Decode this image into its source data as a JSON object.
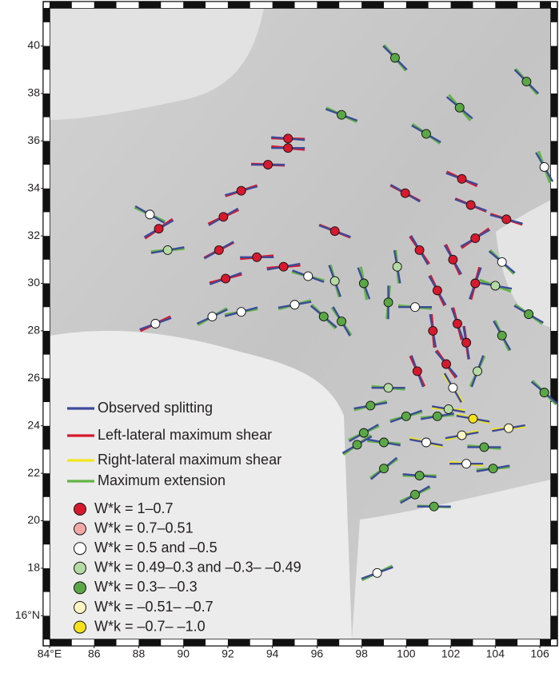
{
  "chart_data": {
    "type": "map",
    "xlim": [
      84,
      106.5
    ],
    "ylim": [
      15,
      41.6
    ],
    "xticks": [
      {
        "value": 84,
        "label": "84°E"
      },
      86,
      88,
      90,
      92,
      94,
      96,
      98,
      100,
      102,
      104,
      106
    ],
    "yticks": [
      {
        "value": 16,
        "label": "16°N"
      },
      18,
      20,
      22,
      24,
      26,
      28,
      30,
      32,
      34,
      36,
      38,
      40
    ],
    "legend": {
      "lines": [
        {
          "label": "Observed splitting",
          "color": "#3c4a9a"
        },
        {
          "label": "Left-lateral maximum shear",
          "color": "#d7192d"
        },
        {
          "label": "Right-lateral maximum shear",
          "color": "#f2e51c"
        },
        {
          "label": "Maximum extension",
          "color": "#62b446"
        }
      ],
      "classes": [
        {
          "label": "W*k = 1–0.7",
          "color": "#d7192d"
        },
        {
          "label": "W*k = 0.7–0.51",
          "color": "#f4a9a8"
        },
        {
          "label": "W*k = 0.5 and –0.5",
          "color": "#ffffff"
        },
        {
          "label": "W*k = 0.49–0.3 and –0.3– –0.49",
          "color": "#b5dba4"
        },
        {
          "label": "W*k = 0.3– –0.3",
          "color": "#5aa845"
        },
        {
          "label": "W*k = –0.51– –0.7",
          "color": "#fdf6c3"
        },
        {
          "label": "W*k = –0.7– –1.0",
          "color": "#f7e11b"
        }
      ]
    },
    "stations": [
      {
        "lon": 99.5,
        "lat": 39.5,
        "w": 4,
        "phi": 135,
        "model": 3,
        "psi": 140
      },
      {
        "lon": 105.4,
        "lat": 38.5,
        "w": 4,
        "phi": 135,
        "model": 3,
        "psi": 140
      },
      {
        "lon": 102.4,
        "lat": 37.4,
        "w": 4,
        "phi": 130,
        "model": 3,
        "psi": 140
      },
      {
        "lon": 97.1,
        "lat": 37.1,
        "w": 4,
        "phi": 110,
        "model": 3,
        "psi": 115
      },
      {
        "lon": 100.9,
        "lat": 36.3,
        "w": 4,
        "phi": 120,
        "model": 3,
        "psi": 125
      },
      {
        "lon": 94.7,
        "lat": 36.1,
        "w": 0,
        "phi": 95,
        "model": 1,
        "psi": 92
      },
      {
        "lon": 94.7,
        "lat": 35.7,
        "w": 0,
        "phi": 90,
        "model": 1,
        "psi": 95
      },
      {
        "lon": 106.2,
        "lat": 34.9,
        "w": 2,
        "phi": 150,
        "model": 3,
        "psi": 160
      },
      {
        "lon": 93.8,
        "lat": 35.0,
        "w": 0,
        "phi": 90,
        "model": 1,
        "psi": 92
      },
      {
        "lon": 102.5,
        "lat": 34.4,
        "w": 0,
        "phi": 110,
        "model": 1,
        "psi": 115
      },
      {
        "lon": 99.96,
        "lat": 33.8,
        "w": 0,
        "phi": 120,
        "model": 1,
        "psi": 118
      },
      {
        "lon": 92.6,
        "lat": 33.9,
        "w": 0,
        "phi": 75,
        "model": 1,
        "psi": 72
      },
      {
        "lon": 102.9,
        "lat": 33.3,
        "w": 0,
        "phi": 110,
        "model": 1,
        "psi": 112
      },
      {
        "lon": 104.5,
        "lat": 32.7,
        "w": 0,
        "phi": 105,
        "model": 1,
        "psi": 108
      },
      {
        "lon": 88.5,
        "lat": 32.9,
        "w": 2,
        "phi": 120,
        "model": 3,
        "psi": 115
      },
      {
        "lon": 88.9,
        "lat": 32.3,
        "w": 0,
        "phi": 60,
        "model": 1,
        "psi": 55
      },
      {
        "lon": 91.8,
        "lat": 32.8,
        "w": 0,
        "phi": 60,
        "model": 1,
        "psi": 65
      },
      {
        "lon": 96.8,
        "lat": 32.2,
        "w": 0,
        "phi": 110,
        "model": 1,
        "psi": 112
      },
      {
        "lon": 89.3,
        "lat": 31.4,
        "w": 3,
        "phi": 80,
        "model": 3,
        "psi": 85
      },
      {
        "lon": 91.6,
        "lat": 31.4,
        "w": 0,
        "phi": 60,
        "model": 1,
        "psi": 62
      },
      {
        "lon": 103.1,
        "lat": 31.9,
        "w": 0,
        "phi": 60,
        "model": 1,
        "psi": 55
      },
      {
        "lon": 100.6,
        "lat": 31.4,
        "w": 0,
        "phi": 150,
        "model": 1,
        "psi": 145
      },
      {
        "lon": 104.3,
        "lat": 30.9,
        "w": 2,
        "phi": 130,
        "model": 3,
        "psi": 135
      },
      {
        "lon": 102.1,
        "lat": 31.0,
        "w": 0,
        "phi": 150,
        "model": 1,
        "psi": 155
      },
      {
        "lon": 99.6,
        "lat": 30.7,
        "w": 3,
        "phi": 170,
        "model": 3,
        "psi": 175
      },
      {
        "lon": 93.3,
        "lat": 31.1,
        "w": 0,
        "phi": 90,
        "model": 1,
        "psi": 85
      },
      {
        "lon": 94.5,
        "lat": 30.7,
        "w": 0,
        "phi": 80,
        "model": 1,
        "psi": 85
      },
      {
        "lon": 95.6,
        "lat": 30.3,
        "w": 2,
        "phi": 110,
        "model": 3,
        "psi": 105
      },
      {
        "lon": 96.8,
        "lat": 30.1,
        "w": 3,
        "phi": 160,
        "model": 3,
        "psi": 165
      },
      {
        "lon": 98.1,
        "lat": 30.0,
        "w": 4,
        "phi": 160,
        "model": 3,
        "psi": 170
      },
      {
        "lon": 91.9,
        "lat": 30.2,
        "w": 0,
        "phi": 70,
        "model": 1,
        "psi": 75
      },
      {
        "lon": 104.0,
        "lat": 29.9,
        "w": 3,
        "phi": 100,
        "model": 3,
        "psi": 110
      },
      {
        "lon": 103.1,
        "lat": 30.0,
        "w": 0,
        "phi": 20,
        "model": 1,
        "psi": 15
      },
      {
        "lon": 101.4,
        "lat": 29.7,
        "w": 0,
        "phi": 150,
        "model": 1,
        "psi": 155
      },
      {
        "lon": 100.4,
        "lat": 29.0,
        "w": 2,
        "phi": 90,
        "model": 3,
        "psi": 95
      },
      {
        "lon": 95.0,
        "lat": 29.1,
        "w": 2,
        "phi": 80,
        "model": 3,
        "psi": 75
      },
      {
        "lon": 92.6,
        "lat": 28.8,
        "w": 2,
        "phi": 75,
        "model": 3,
        "psi": 80
      },
      {
        "lon": 91.3,
        "lat": 28.6,
        "w": 2,
        "phi": 65,
        "model": 3,
        "psi": 60
      },
      {
        "lon": 99.2,
        "lat": 29.2,
        "w": 4,
        "phi": 0,
        "model": 3,
        "psi": 5
      },
      {
        "lon": 97.1,
        "lat": 28.4,
        "w": 4,
        "phi": 150,
        "model": 3,
        "psi": 145
      },
      {
        "lon": 96.3,
        "lat": 28.6,
        "w": 4,
        "phi": 130,
        "model": 3,
        "psi": 135
      },
      {
        "lon": 88.75,
        "lat": 28.3,
        "w": 2,
        "phi": 70,
        "model": 1,
        "psi": 65
      },
      {
        "lon": 101.2,
        "lat": 28.0,
        "w": 0,
        "phi": 170,
        "model": 1,
        "psi": 175
      },
      {
        "lon": 102.3,
        "lat": 28.3,
        "w": 0,
        "phi": 160,
        "model": 1,
        "psi": 165
      },
      {
        "lon": 102.7,
        "lat": 27.5,
        "w": 0,
        "phi": 170,
        "model": 1,
        "psi": 172
      },
      {
        "lon": 105.5,
        "lat": 28.7,
        "w": 4,
        "phi": 120,
        "model": 3,
        "psi": 125
      },
      {
        "lon": 104.3,
        "lat": 27.8,
        "w": 4,
        "phi": 150,
        "model": 3,
        "psi": 155
      },
      {
        "lon": 101.8,
        "lat": 26.6,
        "w": 0,
        "phi": 140,
        "model": 1,
        "psi": 145
      },
      {
        "lon": 103.2,
        "lat": 26.3,
        "w": 3,
        "phi": 20,
        "model": 3,
        "psi": 25
      },
      {
        "lon": 100.5,
        "lat": 26.3,
        "w": 0,
        "phi": 160,
        "model": 1,
        "psi": 155
      },
      {
        "lon": 106.2,
        "lat": 25.4,
        "w": 4,
        "phi": 130,
        "model": 3,
        "psi": 135
      },
      {
        "lon": 102.1,
        "lat": 25.6,
        "w": 2,
        "phi": 150,
        "model": 2,
        "psi": 145
      },
      {
        "lon": 99.2,
        "lat": 25.6,
        "w": 3,
        "phi": 90,
        "model": 3,
        "psi": 95
      },
      {
        "lon": 100.0,
        "lat": 24.4,
        "w": 4,
        "phi": 70,
        "model": 3,
        "psi": 75
      },
      {
        "lon": 101.4,
        "lat": 24.4,
        "w": 4,
        "phi": 80,
        "model": 3,
        "psi": 85
      },
      {
        "lon": 103.0,
        "lat": 24.3,
        "w": 6,
        "phi": 100,
        "model": 2,
        "psi": 105
      },
      {
        "lon": 98.1,
        "lat": 23.7,
        "w": 4,
        "phi": 60,
        "model": 3,
        "psi": 65
      },
      {
        "lon": 99.0,
        "lat": 23.3,
        "w": 4,
        "phi": 100,
        "model": 3,
        "psi": 95
      },
      {
        "lon": 100.9,
        "lat": 23.3,
        "w": 2,
        "phi": 100,
        "model": 2,
        "psi": 105
      },
      {
        "lon": 103.5,
        "lat": 23.1,
        "w": 4,
        "phi": 90,
        "model": 3,
        "psi": 95
      },
      {
        "lon": 97.8,
        "lat": 23.2,
        "w": 4,
        "phi": 60,
        "model": 3,
        "psi": 55
      },
      {
        "lon": 99.0,
        "lat": 22.2,
        "w": 4,
        "phi": 50,
        "model": 3,
        "psi": 55
      },
      {
        "lon": 100.6,
        "lat": 21.9,
        "w": 4,
        "phi": 95,
        "model": 3,
        "psi": 90
      },
      {
        "lon": 100.4,
        "lat": 21.1,
        "w": 4,
        "phi": 60,
        "model": 3,
        "psi": 65
      },
      {
        "lon": 101.25,
        "lat": 20.6,
        "w": 4,
        "phi": 90,
        "model": 3,
        "psi": 92
      },
      {
        "lon": 98.7,
        "lat": 17.8,
        "w": 2,
        "phi": 70,
        "model": 3,
        "psi": 65
      },
      {
        "lon": 102.7,
        "lat": 22.4,
        "w": 2,
        "phi": 90,
        "model": 2,
        "psi": 95
      },
      {
        "lon": 104.6,
        "lat": 23.9,
        "w": 5,
        "phi": 80,
        "model": 2,
        "psi": 85
      },
      {
        "lon": 102.5,
        "lat": 23.6,
        "w": 5,
        "phi": 80,
        "model": 2,
        "psi": 75
      },
      {
        "lon": 103.9,
        "lat": 22.2,
        "w": 4,
        "phi": 80,
        "model": 3,
        "psi": 85
      },
      {
        "lon": 98.4,
        "lat": 24.85,
        "w": 4,
        "phi": 80,
        "model": 3,
        "psi": 75
      },
      {
        "lon": 101.9,
        "lat": 24.7,
        "w": 3,
        "phi": 100,
        "model": 2,
        "psi": 95
      }
    ]
  }
}
